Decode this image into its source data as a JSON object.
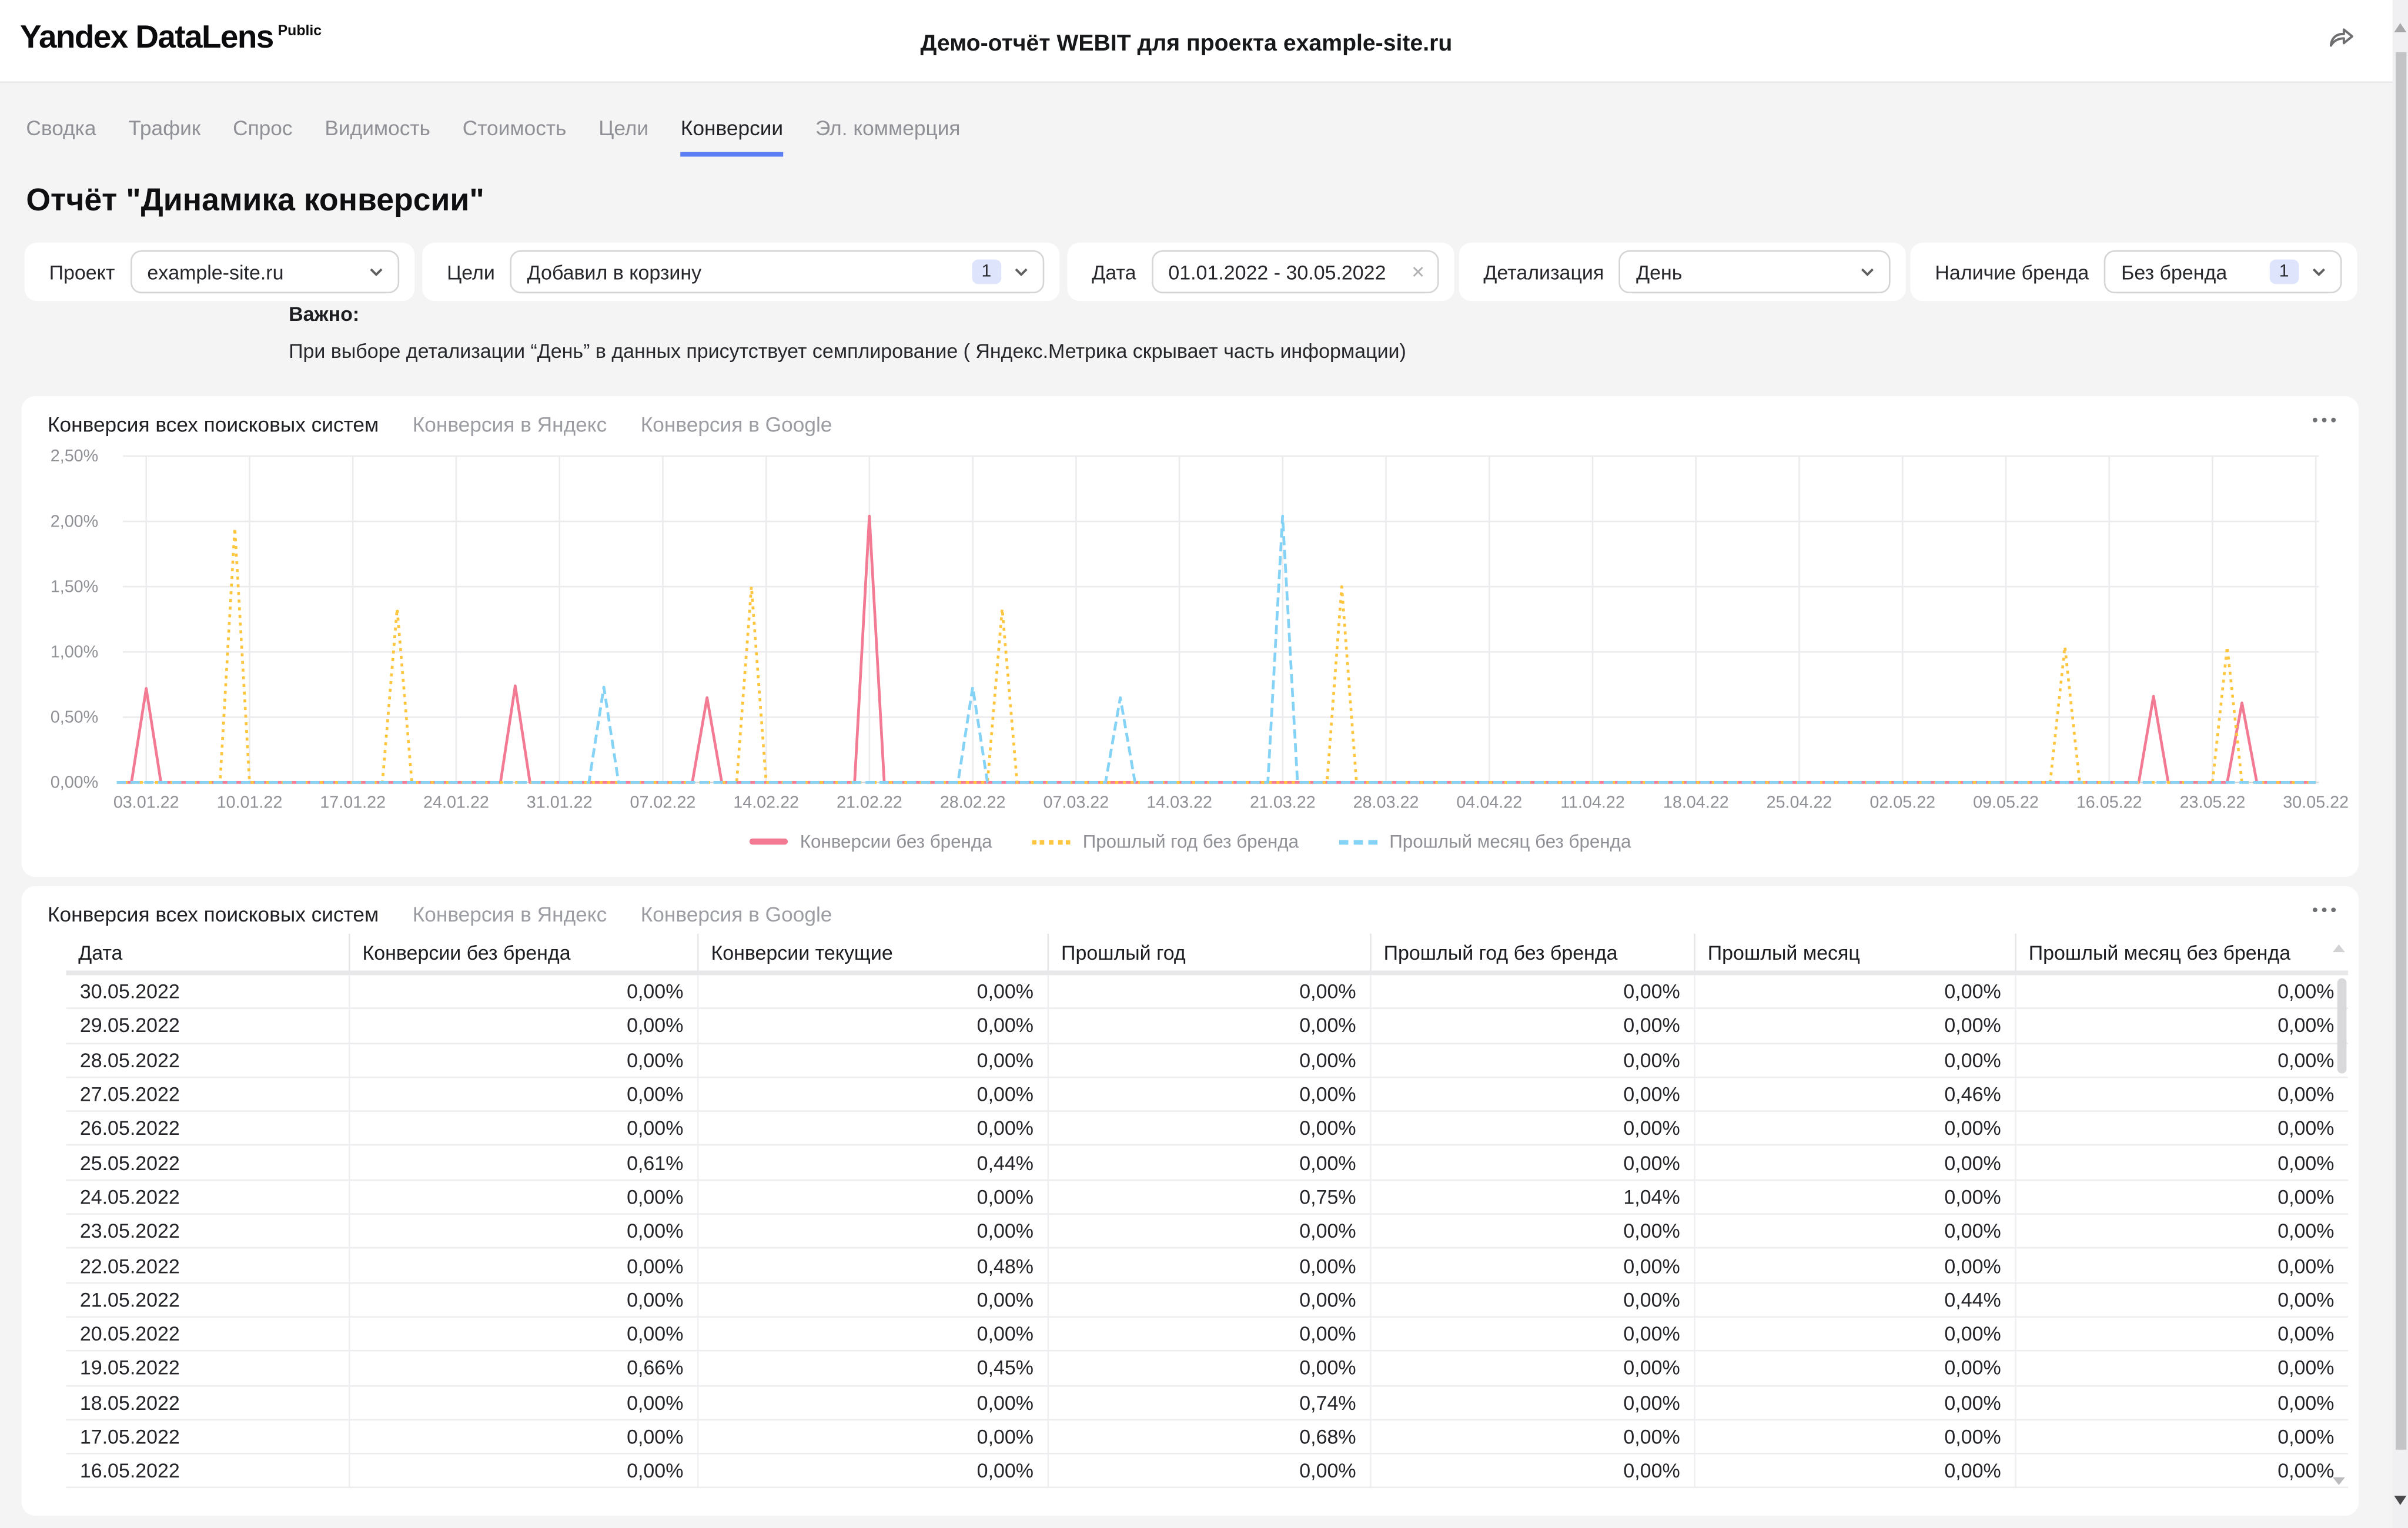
{
  "header": {
    "logo_text": "Yandex DataLens",
    "logo_badge": "Public",
    "document_title": "Демо-отчёт WEBIT для проекта example-site.ru"
  },
  "nav_tabs": [
    {
      "label": "Сводка",
      "active": false
    },
    {
      "label": "Трафик",
      "active": false
    },
    {
      "label": "Спрос",
      "active": false
    },
    {
      "label": "Видимость",
      "active": false
    },
    {
      "label": "Стоимость",
      "active": false
    },
    {
      "label": "Цели",
      "active": false
    },
    {
      "label": "Конверсии",
      "active": true
    },
    {
      "label": "Эл. коммерция",
      "active": false
    }
  ],
  "page_title": "Отчёт \"Динамика конверсии\"",
  "filters": {
    "project": {
      "label": "Проект",
      "value": "example-site.ru"
    },
    "goals": {
      "label": "Цели",
      "value": "Добавил в корзину",
      "badge": "1"
    },
    "date": {
      "label": "Дата",
      "value": "01.01.2022 - 30.05.2022",
      "clear_icon": "✕"
    },
    "detail": {
      "label": "Детализация",
      "value": "День"
    },
    "brand": {
      "label": "Наличие бренда",
      "value": "Без бренда",
      "badge": "1"
    }
  },
  "note": {
    "title": "Важно:",
    "text": "При выборе детализации “День” в данных присутствует семплирование ( Яндекс.Метрика скрывает часть информации)"
  },
  "chart_widget": {
    "tabs": [
      {
        "label": "Конверсия всех поисковых систем",
        "active": true
      },
      {
        "label": "Конверсия в Яндекс",
        "active": false
      },
      {
        "label": "Конверсия в Google",
        "active": false
      }
    ]
  },
  "chart_data": {
    "type": "line",
    "title": "Конверсия всех поисковых систем",
    "x_range": [
      "01.01.2022",
      "30.05.2022"
    ],
    "days_total": 150,
    "ylim": [
      0,
      2.5
    ],
    "ylabel": "",
    "xlabel": "",
    "grid": true,
    "legend_position": "bottom",
    "y_tick_labels": [
      "0,00%",
      "0,50%",
      "1,00%",
      "1,50%",
      "2,00%",
      "2,50%"
    ],
    "x_tick_labels": [
      "03.01.22",
      "10.01.22",
      "17.01.22",
      "24.01.22",
      "31.01.22",
      "07.02.22",
      "14.02.22",
      "21.02.22",
      "28.02.22",
      "07.03.22",
      "14.03.22",
      "21.03.22",
      "28.03.22",
      "04.04.22",
      "11.04.22",
      "18.04.22",
      "25.04.22",
      "02.05.22",
      "09.05.22",
      "16.05.22",
      "23.05.22",
      "30.05.22"
    ],
    "x_tick_day_indices": [
      2,
      9,
      16,
      23,
      30,
      37,
      44,
      51,
      58,
      65,
      72,
      79,
      86,
      93,
      100,
      107,
      114,
      121,
      128,
      135,
      142,
      149
    ],
    "series": [
      {
        "name": "Конверсии без бренда",
        "color": "#f37a93",
        "line_style": "solid",
        "baseline_value": 0,
        "spikes_day_value": [
          [
            2,
            0.72
          ],
          [
            27,
            0.74
          ],
          [
            40,
            0.65
          ],
          [
            51,
            2.04
          ],
          [
            138,
            0.66
          ],
          [
            144,
            0.61
          ]
        ],
        "spike_dates": [
          "03.01.22",
          "28.01.22",
          "10.02.22",
          "21.02.22",
          "19.05.22",
          "25.05.22"
        ]
      },
      {
        "name": "Прошлый год без бренда",
        "color": "#fec63e",
        "line_style": "dotted",
        "baseline_value": 0,
        "spikes_day_value": [
          [
            8,
            1.95
          ],
          [
            19,
            1.33
          ],
          [
            43,
            1.5
          ],
          [
            60,
            1.33
          ],
          [
            83,
            1.5
          ],
          [
            132,
            1.04
          ],
          [
            143,
            1.04
          ]
        ],
        "spike_dates": [
          "09.01.22",
          "20.01.22",
          "13.02.22",
          "02.03.22",
          "25.03.22",
          "13.05.22",
          "24.05.22"
        ]
      },
      {
        "name": "Прошлый месяц без бренда",
        "color": "#84d2f5",
        "line_style": "dashed",
        "baseline_value": 0,
        "spikes_day_value": [
          [
            33,
            0.73
          ],
          [
            58,
            0.73
          ],
          [
            68,
            0.65
          ],
          [
            79,
            2.04
          ]
        ],
        "spike_dates": [
          "03.02.22",
          "28.02.22",
          "10.03.22",
          "21.03.22"
        ]
      }
    ]
  },
  "table_widget": {
    "tabs": [
      {
        "label": "Конверсия всех поисковых систем",
        "active": true
      },
      {
        "label": "Конверсия в Яндекс",
        "active": false
      },
      {
        "label": "Конверсия в Google",
        "active": false
      }
    ],
    "columns": [
      "Дата",
      "Конверсии без бренда",
      "Конверсии текущие",
      "Прошлый год",
      "Прошлый год без бренда",
      "Прошлый месяц",
      "Прошлый месяц без бренда"
    ],
    "rows": [
      {
        "date": "30.05.2022",
        "values": [
          "0,00%",
          "0,00%",
          "0,00%",
          "0,00%",
          "0,00%",
          "0,00%"
        ]
      },
      {
        "date": "29.05.2022",
        "values": [
          "0,00%",
          "0,00%",
          "0,00%",
          "0,00%",
          "0,00%",
          "0,00%"
        ]
      },
      {
        "date": "28.05.2022",
        "values": [
          "0,00%",
          "0,00%",
          "0,00%",
          "0,00%",
          "0,00%",
          "0,00%"
        ]
      },
      {
        "date": "27.05.2022",
        "values": [
          "0,00%",
          "0,00%",
          "0,00%",
          "0,00%",
          "0,46%",
          "0,00%"
        ]
      },
      {
        "date": "26.05.2022",
        "values": [
          "0,00%",
          "0,00%",
          "0,00%",
          "0,00%",
          "0,00%",
          "0,00%"
        ]
      },
      {
        "date": "25.05.2022",
        "values": [
          "0,61%",
          "0,44%",
          "0,00%",
          "0,00%",
          "0,00%",
          "0,00%"
        ]
      },
      {
        "date": "24.05.2022",
        "values": [
          "0,00%",
          "0,00%",
          "0,75%",
          "1,04%",
          "0,00%",
          "0,00%"
        ]
      },
      {
        "date": "23.05.2022",
        "values": [
          "0,00%",
          "0,00%",
          "0,00%",
          "0,00%",
          "0,00%",
          "0,00%"
        ]
      },
      {
        "date": "22.05.2022",
        "values": [
          "0,00%",
          "0,48%",
          "0,00%",
          "0,00%",
          "0,00%",
          "0,00%"
        ]
      },
      {
        "date": "21.05.2022",
        "values": [
          "0,00%",
          "0,00%",
          "0,00%",
          "0,00%",
          "0,44%",
          "0,00%"
        ]
      },
      {
        "date": "20.05.2022",
        "values": [
          "0,00%",
          "0,00%",
          "0,00%",
          "0,00%",
          "0,00%",
          "0,00%"
        ]
      },
      {
        "date": "19.05.2022",
        "values": [
          "0,66%",
          "0,45%",
          "0,00%",
          "0,00%",
          "0,00%",
          "0,00%"
        ]
      },
      {
        "date": "18.05.2022",
        "values": [
          "0,00%",
          "0,00%",
          "0,74%",
          "0,00%",
          "0,00%",
          "0,00%"
        ]
      },
      {
        "date": "17.05.2022",
        "values": [
          "0,00%",
          "0,00%",
          "0,68%",
          "0,00%",
          "0,00%",
          "0,00%"
        ]
      },
      {
        "date": "16.05.2022",
        "values": [
          "0,00%",
          "0,00%",
          "0,00%",
          "0,00%",
          "0,00%",
          "0,00%"
        ]
      }
    ]
  }
}
